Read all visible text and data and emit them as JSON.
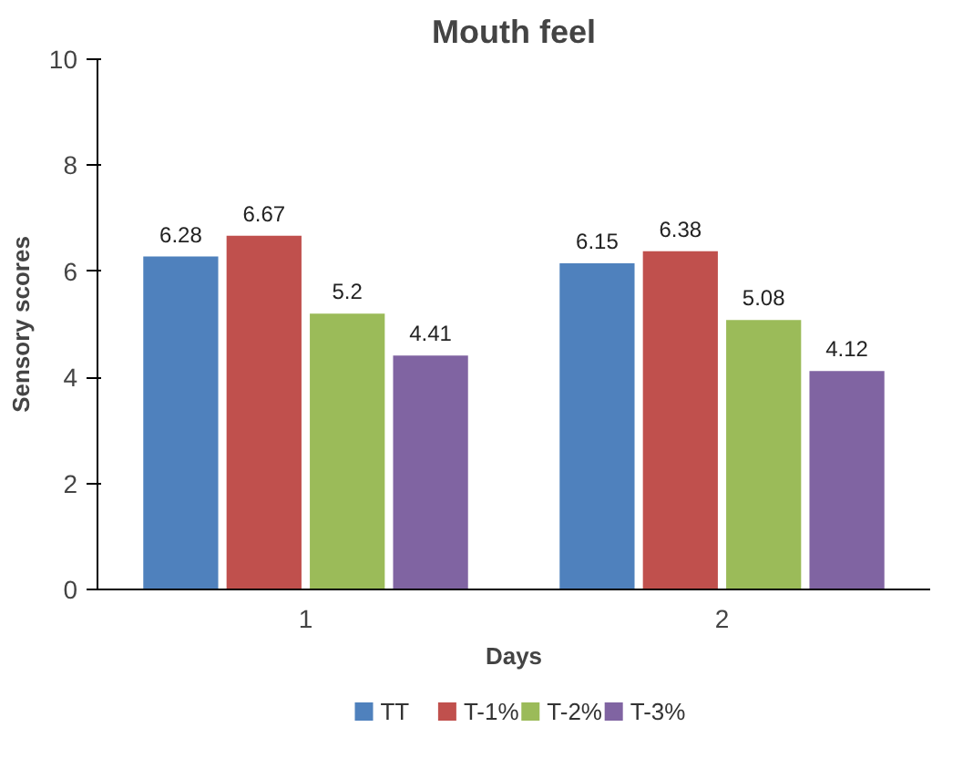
{
  "chart_data": {
    "type": "bar",
    "title": "Mouth feel",
    "xlabel": "Days",
    "ylabel": "Sensory scores",
    "categories": [
      "1",
      "2"
    ],
    "series": [
      {
        "name": "TT",
        "color": "#4f81bd",
        "values": [
          6.28,
          6.15
        ]
      },
      {
        "name": "T-1%",
        "color": "#c0504d",
        "values": [
          6.67,
          6.38
        ]
      },
      {
        "name": "T-2%",
        "color": "#9bbb59",
        "values": [
          5.2,
          5.08
        ]
      },
      {
        "name": "T-3%",
        "color": "#8064a2",
        "values": [
          4.41,
          4.12
        ]
      }
    ],
    "ylim": [
      0,
      10
    ],
    "yticks": [
      0,
      2,
      4,
      6,
      8,
      10
    ],
    "grid": false,
    "legend": "bottom",
    "data_labels": true
  }
}
